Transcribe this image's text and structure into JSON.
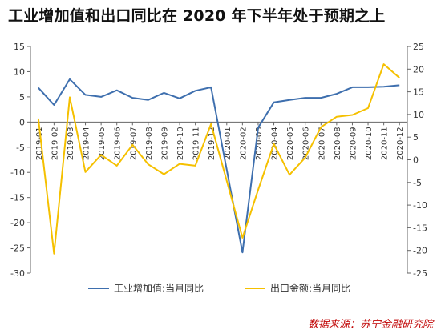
{
  "title": "工业增加值和出口同比在 2020 年下半年处于预期之上",
  "source": "数据来源：苏宁金融研究院",
  "chart_data": {
    "type": "line",
    "categories": [
      "2019-01",
      "2019-02",
      "2019-03",
      "2019-04",
      "2019-05",
      "2019-06",
      "2019-07",
      "2019-08",
      "2019-09",
      "2019-10",
      "2019-11",
      "2019-12",
      "2020-01",
      "2020-02",
      "2020-03",
      "2020-04",
      "2020-05",
      "2020-06",
      "2020-07",
      "2020-08",
      "2020-09",
      "2020-10",
      "2020-11",
      "2020-12"
    ],
    "left_axis": {
      "min": -30,
      "max": 15,
      "ticks": [
        15,
        10,
        5,
        0,
        -5,
        -10,
        -15,
        -20,
        -25,
        -30
      ]
    },
    "right_axis": {
      "min": -25,
      "max": 25,
      "ticks": [
        25,
        20,
        15,
        10,
        5,
        0,
        -5,
        -10,
        -15,
        -20,
        -25
      ]
    },
    "series": [
      {
        "name": "工业增加值:当月同比",
        "axis": "left",
        "color": "#3e6fae",
        "values": [
          6.8,
          3.4,
          8.5,
          5.4,
          5.0,
          6.3,
          4.8,
          4.4,
          5.8,
          4.7,
          6.2,
          6.9,
          null,
          -25.9,
          -1.1,
          3.9,
          4.4,
          4.8,
          4.8,
          5.6,
          6.9,
          6.9,
          7.0,
          7.3
        ]
      },
      {
        "name": "出口金额:当月同比",
        "axis": "right",
        "color": "#f5c000",
        "values": [
          9.1,
          -20.7,
          13.8,
          -2.7,
          1.1,
          -1.3,
          3.3,
          -1.0,
          -3.2,
          -0.9,
          -1.3,
          7.9,
          null,
          -17.2,
          -6.6,
          3.5,
          -3.3,
          0.5,
          7.2,
          9.5,
          9.9,
          11.4,
          21.1,
          18.1
        ]
      }
    ],
    "legend_position": "bottom",
    "grid": false
  }
}
